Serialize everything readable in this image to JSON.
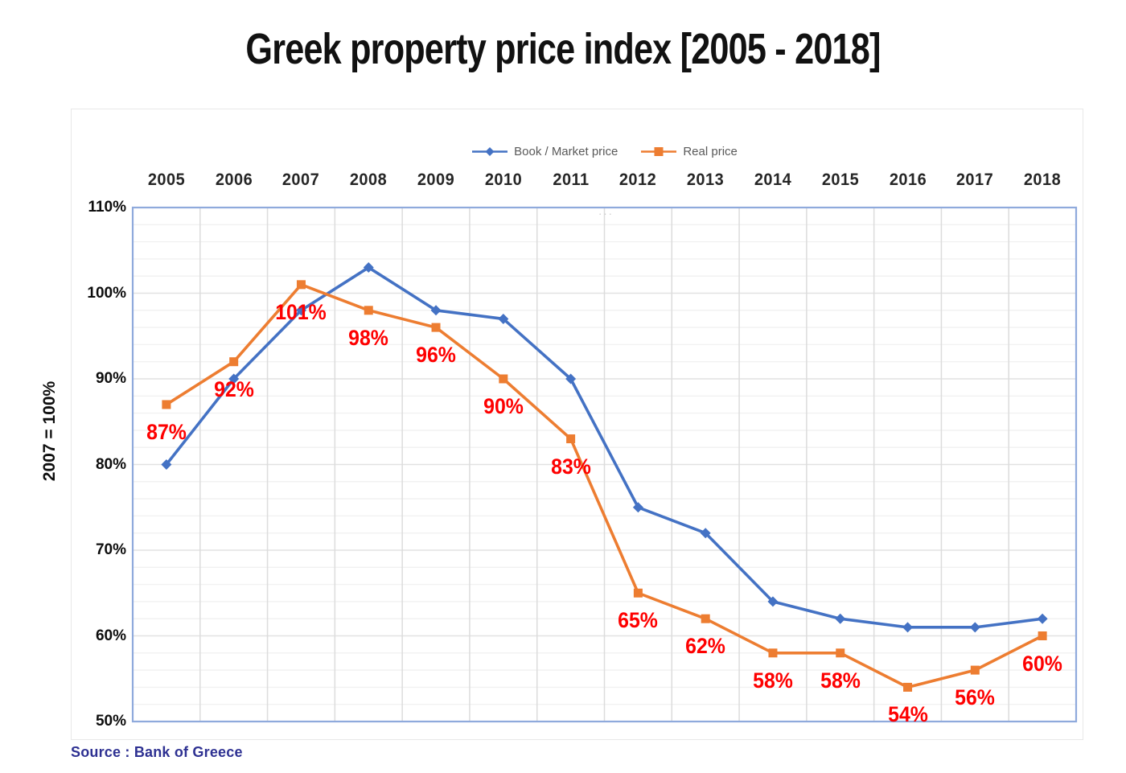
{
  "title": "Greek property price index [2005 - 2018]",
  "source": "Source : Bank of Greece",
  "decoration": {
    "dots": "···"
  },
  "chart_data": {
    "type": "line",
    "title": "Greek property price index [2005 - 2018]",
    "categories": [
      "2005",
      "2006",
      "2007",
      "2008",
      "2009",
      "2010",
      "2011",
      "2012",
      "2013",
      "2014",
      "2015",
      "2016",
      "2017",
      "2018"
    ],
    "series": [
      {
        "name": "Book / Market price",
        "color": "#4472C4",
        "marker": "diamond",
        "values": [
          80,
          90,
          98,
          103,
          98,
          97,
          90,
          75,
          72,
          64,
          62,
          61,
          61,
          62
        ]
      },
      {
        "name": "Real price",
        "color": "#ED7D31",
        "marker": "square",
        "values": [
          87,
          92,
          101,
          98,
          96,
          90,
          83,
          65,
          62,
          58,
          58,
          54,
          56,
          60
        ],
        "data_labels": [
          "87%",
          "92%",
          "101%",
          "98%",
          "96%",
          "90%",
          "83%",
          "65%",
          "62%",
          "58%",
          "58%",
          "54%",
          "56%",
          "60%"
        ],
        "data_label_color": "#FE0000"
      }
    ],
    "xlabel": "",
    "ylabel": "2007 = 100%",
    "yticks": [
      "110%",
      "100%",
      "90%",
      "80%",
      "70%",
      "60%",
      "50%"
    ],
    "ylim": [
      50,
      110
    ],
    "y_major_step": 10,
    "y_minor_step": 2,
    "grid": true,
    "legend_position": "top",
    "x_axis_position": "top",
    "plot_border_color": "#8FAADC",
    "grid_major_color": "#E2E2E2",
    "grid_minor_color": "#F1F1F1",
    "grid_vertical_color": "#DCDCDC"
  }
}
